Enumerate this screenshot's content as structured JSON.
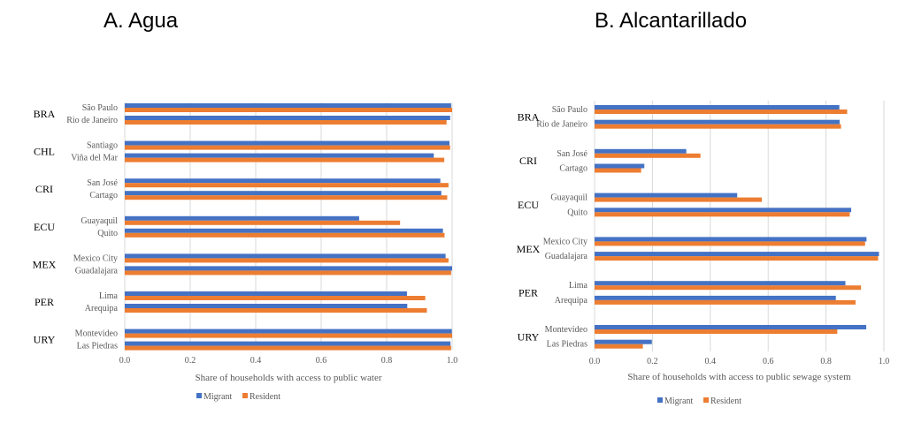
{
  "colors": {
    "migrant": "#4472C4",
    "resident": "#ED7D31",
    "grid": "#D9D9D9"
  },
  "chart_data": [
    {
      "type": "bar",
      "orientation": "horizontal",
      "title": "A. Agua",
      "xlabel": "Share of households with access to public water",
      "xlim": [
        0,
        1.0
      ],
      "xticks": [
        "0.0",
        "0.2",
        "0.4",
        "0.6",
        "0.8",
        "1.0"
      ],
      "grid": true,
      "legend": [
        "Migrant",
        "Resident"
      ],
      "legend_position": "bottom",
      "groups": [
        {
          "country": "BRA",
          "cities": [
            {
              "name": "São Paulo",
              "migrant": 0.997,
              "resident": 1.0
            },
            {
              "name": "Rio de Janeiro",
              "migrant": 0.994,
              "resident": 0.983
            }
          ]
        },
        {
          "country": "CHL",
          "cities": [
            {
              "name": "Santiago",
              "migrant": 0.992,
              "resident": 0.994
            },
            {
              "name": "Viña del Mar",
              "migrant": 0.944,
              "resident": 0.976
            }
          ]
        },
        {
          "country": "CRI",
          "cities": [
            {
              "name": "San José",
              "migrant": 0.964,
              "resident": 0.989
            },
            {
              "name": "Cartago",
              "migrant": 0.967,
              "resident": 0.985
            }
          ]
        },
        {
          "country": "ECU",
          "cities": [
            {
              "name": "Guayaquil",
              "migrant": 0.716,
              "resident": 0.841
            },
            {
              "name": "Quito",
              "migrant": 0.972,
              "resident": 0.977
            }
          ]
        },
        {
          "country": "MEX",
          "cities": [
            {
              "name": "Mexico City",
              "migrant": 0.98,
              "resident": 0.989
            },
            {
              "name": "Guadalajara",
              "migrant": 1.0,
              "resident": 0.997
            }
          ]
        },
        {
          "country": "PER",
          "cities": [
            {
              "name": "Lima",
              "migrant": 0.862,
              "resident": 0.918
            },
            {
              "name": "Arequipa",
              "migrant": 0.863,
              "resident": 0.923
            }
          ]
        },
        {
          "country": "URY",
          "cities": [
            {
              "name": "Montevideo",
              "migrant": 0.999,
              "resident": 1.0
            },
            {
              "name": "Las Piedras",
              "migrant": 0.995,
              "resident": 0.997
            }
          ]
        }
      ]
    },
    {
      "type": "bar",
      "orientation": "horizontal",
      "title": "B. Alcantarillado",
      "xlabel": "Share of households with access to public sewage system",
      "xlim": [
        0,
        1.0
      ],
      "xticks": [
        "0.0",
        "0.2",
        "0.4",
        "0.6",
        "0.8",
        "1.0"
      ],
      "grid": true,
      "legend": [
        "Migrant",
        "Resident"
      ],
      "legend_position": "bottom",
      "groups": [
        {
          "country": "BRA",
          "cities": [
            {
              "name": "São Paulo",
              "migrant": 0.846,
              "resident": 0.873
            },
            {
              "name": "Rio de Janeiro",
              "migrant": 0.847,
              "resident": 0.852
            }
          ]
        },
        {
          "country": "CRI",
          "cities": [
            {
              "name": "San José",
              "migrant": 0.317,
              "resident": 0.366
            },
            {
              "name": "Cartago",
              "migrant": 0.172,
              "resident": 0.161
            }
          ]
        },
        {
          "country": "ECU",
          "cities": [
            {
              "name": "Guayaquil",
              "migrant": 0.493,
              "resident": 0.578
            },
            {
              "name": "Quito",
              "migrant": 0.887,
              "resident": 0.882
            }
          ]
        },
        {
          "country": "MEX",
          "cities": [
            {
              "name": "Mexico City",
              "migrant": 0.94,
              "resident": 0.935
            },
            {
              "name": "Guadalajara",
              "migrant": 0.983,
              "resident": 0.98
            }
          ]
        },
        {
          "country": "PER",
          "cities": [
            {
              "name": "Lima",
              "migrant": 0.867,
              "resident": 0.921
            },
            {
              "name": "Arequipa",
              "migrant": 0.834,
              "resident": 0.902
            }
          ]
        },
        {
          "country": "URY",
          "cities": [
            {
              "name": "Montevideo",
              "migrant": 0.939,
              "resident": 0.839
            },
            {
              "name": "Las Piedras",
              "migrant": 0.198,
              "resident": 0.167
            }
          ]
        }
      ]
    }
  ]
}
